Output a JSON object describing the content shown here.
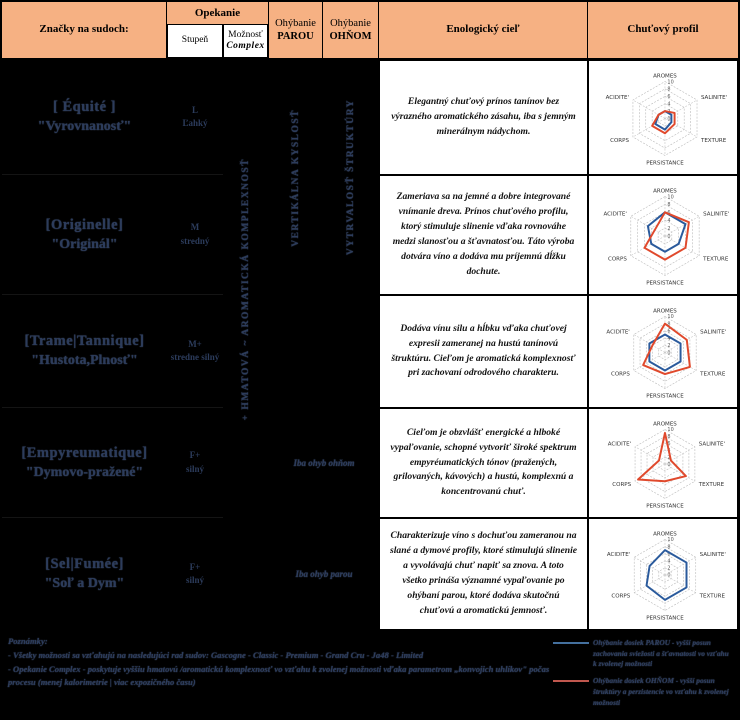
{
  "header": {
    "col_marks": "Značky na sudoch:",
    "col_toasting": "Opekanie",
    "col_degree": "Stupeň",
    "col_complex_line1": "Možnosť",
    "col_complex_line2": "Complex",
    "col_steam_line1": "Ohýbanie",
    "col_steam_line2": "PAROU",
    "col_fire_line1": "Ohýbanie",
    "col_fire_line2": "OHŇOM",
    "col_goal": "Enologický cieľ",
    "col_profile": "Chuťový profil",
    "header_bg": "#f6b183"
  },
  "vertical_labels": {
    "complex": "+ HMATOVÁ ~ AROMATICKÁ KOMPLEXNOSŤ",
    "steam": "VERTIKÁLNA KYSLOSŤ",
    "fire": "VYTRVALOSŤ ŠTRUKTÚRY"
  },
  "rows": [
    {
      "mark_fr": "[ Équité ]",
      "mark_sk": "\"Vyrovnanosť\"",
      "degree_code": "L",
      "degree_label": "Ľahký",
      "goal": "Elegantný  chuťový prínos tanínov bez výrazného aromatického zásahu, iba s jemným minerálnym nádychom."
    },
    {
      "mark_fr": "[Originelle]",
      "mark_sk": "\"Originál\"",
      "degree_code": "M",
      "degree_label": "stredný",
      "goal": "Zameriava sa na jemné a dobre integrované vnímanie dreva. Prínos chuťového profilu, ktorý stimuluje slinenie vďaka rovnováhe medzi slanosťou a šťavnatosťou. Táto výroba dotvára víno a dodáva mu príjemnú dĺžku dochute."
    },
    {
      "mark_fr": "[Trame|Tannique]",
      "mark_sk": "\"Hustota,Plnosť\"",
      "degree_code": "M+",
      "degree_label": "stredne silný",
      "goal": "Dodáva vínu silu a hĺbku vďaka chuťovej expresii zameranej na hustú tanínovú štruktúru. Cieľom je aromatická komplexnosť pri zachovaní odrodového charakteru."
    },
    {
      "mark_fr": "[Empyreumatique]",
      "mark_sk": "\"Dymovo-pražené\"",
      "degree_code": "F+",
      "degree_label": "silný",
      "bend_note": "Iba ohyb ohňom",
      "goal": "Cieľom je obzvlášť energické a hlboké vypaľovanie, schopné vytvoriť široké spektrum empyréumatických tónov (pražených, grilovaných, kávových) a hustú, komplexnú a koncentrovanú chuť."
    },
    {
      "mark_fr": "[Sel|Fumée]",
      "mark_sk": "\"Soľ a Dym\"",
      "degree_code": "F+",
      "degree_label": "silný",
      "bend_note": "Iba ohyb parou",
      "goal": "Charakterizuje víno s dochuťou zameranou na slané a dymové profily, ktoré stimulujú slinenie a vyvolávajú chuť napiť sa znova. A toto všetko prináša významné vypaľovanie po ohýbaní parou, ktoré dodáva skutočnú chuťovú a aromatickú jemnosť."
    }
  ],
  "footer": {
    "title": "Poznámky:",
    "note1": "- Všetky možnosti sa vzťahujú na nasledujúci rad sudov: Gascogne - Classic - Premium - Grand Cru - Ja48 - Limited",
    "note2": "- Opekanie Complex - poskytuje vyššiu hmatovú /aromatickú komplexnosť vo vzťahu k zvolenej možnosti vďaka parametrom „konvojich uhlíkov\" počas procesu (menej kalorimetrie | viac expozičného času)"
  },
  "legend": [
    {
      "color": "#44709e",
      "text": "Ohýbanie dosiek PAROU - vyšší posun zachovania sviežosti a šťavnatosti vo vzťahu k zvolenej možnosti"
    },
    {
      "color": "#c0574e",
      "text": "Ohýbanie dosiek OHŇOM - vyšší posun štruktúry a perzistencie vo vzťahu k zvolenej možnosti"
    }
  ],
  "chart_data": [
    {
      "type": "radar",
      "axes": [
        "AROMES",
        "SALINITE'",
        "TEXTURE",
        "PERSISTANCE",
        "CORPS",
        "ACIDITE'"
      ],
      "ticks": [
        0,
        2,
        4,
        6,
        8,
        10
      ],
      "max": 10,
      "series": [
        {
          "name": "Ohýbanie dosiek PAROU",
          "color": "#2a5a9c",
          "values": [
            2,
            2,
            2,
            3,
            3,
            2
          ]
        },
        {
          "name": "Ohýbanie dosiek OHŇOM",
          "color": "#e0492c",
          "values": [
            2,
            3,
            3,
            4,
            4,
            2
          ]
        }
      ]
    },
    {
      "type": "radar",
      "axes": [
        "AROMES",
        "SALINITE'",
        "TEXTURE",
        "PERSISTANCE",
        "CORPS",
        "ACIDITE'"
      ],
      "ticks": [
        0,
        2,
        4,
        6,
        8,
        10
      ],
      "max": 10,
      "series": [
        {
          "name": "Ohýbanie dosiek PAROU",
          "color": "#2a5a9c",
          "values": [
            6,
            6,
            4,
            4,
            4,
            5
          ]
        },
        {
          "name": "Ohýbanie dosiek OHŇOM",
          "color": "#e0492c",
          "values": [
            6,
            7,
            6,
            6,
            6,
            3
          ]
        }
      ]
    },
    {
      "type": "radar",
      "axes": [
        "AROMES",
        "SALINITE'",
        "TEXTURE",
        "PERSISTANCE",
        "CORPS",
        "ACIDITE'"
      ],
      "ticks": [
        0,
        2,
        4,
        6,
        8,
        10
      ],
      "max": 10,
      "series": [
        {
          "name": "Ohýbanie dosiek PAROU",
          "color": "#2a5a9c",
          "values": [
            5,
            5,
            5,
            5,
            5,
            5
          ]
        },
        {
          "name": "Ohýbanie dosiek OHŇOM",
          "color": "#e0492c",
          "values": [
            8,
            7,
            8,
            6,
            7,
            4
          ]
        }
      ]
    },
    {
      "type": "radar",
      "axes": [
        "AROMES",
        "SALINITE'",
        "TEXTURE",
        "PERSISTANCE",
        "CORPS",
        "ACIDITE'"
      ],
      "ticks": [
        0,
        2,
        4,
        6,
        8,
        10
      ],
      "max": 10,
      "series": [
        {
          "name": "Ohýbanie dosiek OHŇOM",
          "color": "#e0492c",
          "values": [
            9,
            2,
            7,
            5,
            9,
            2
          ]
        }
      ]
    },
    {
      "type": "radar",
      "axes": [
        "AROMES",
        "SALINITE'",
        "TEXTURE",
        "PERSISTANCE",
        "CORPS",
        "ACIDITE'"
      ],
      "ticks": [
        0,
        2,
        4,
        6,
        8,
        10
      ],
      "max": 10,
      "series": [
        {
          "name": "Ohýbanie dosiek PAROU",
          "color": "#2a5a9c",
          "values": [
            7,
            7,
            7,
            7,
            6,
            5
          ]
        }
      ]
    }
  ]
}
